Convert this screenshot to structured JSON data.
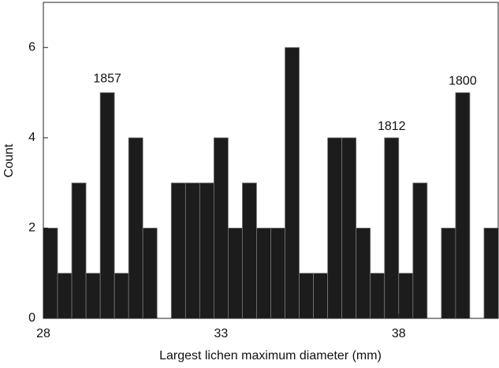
{
  "chart_data": {
    "type": "histogram",
    "xlabel": "Largest lichen maximum diameter (mm)",
    "ylabel": "Count",
    "bins": [
      28,
      28.4,
      28.8,
      29.2,
      29.6,
      30,
      30.4,
      30.8,
      31.2,
      31.6,
      32,
      32.4,
      32.8,
      33.2,
      33.6,
      34,
      34.4,
      34.8,
      35.2,
      35.6,
      36,
      36.4,
      36.8,
      37.2,
      37.6,
      38,
      38.4,
      38.8,
      39.2,
      39.6,
      40,
      40.4,
      40.8
    ],
    "counts": [
      2,
      1,
      3,
      1,
      5,
      1,
      4,
      2,
      0,
      3,
      3,
      3,
      4,
      2,
      3,
      2,
      2,
      6,
      1,
      1,
      4,
      4,
      2,
      1,
      4,
      1,
      3,
      0,
      2,
      5,
      0,
      2
    ],
    "color": "#1c1c1c",
    "xlim": [
      28,
      40.8
    ],
    "xticks": [
      28,
      33,
      38
    ],
    "ylim": [
      0,
      7
    ],
    "yticks": [
      0,
      2,
      4,
      6
    ],
    "annotations": [
      {
        "text": "1857",
        "x": 29.8,
        "y": 5.3
      },
      {
        "text": "1812",
        "x": 37.8,
        "y": 4.25
      },
      {
        "text": "1800",
        "x": 39.8,
        "y": 5.25
      }
    ]
  }
}
